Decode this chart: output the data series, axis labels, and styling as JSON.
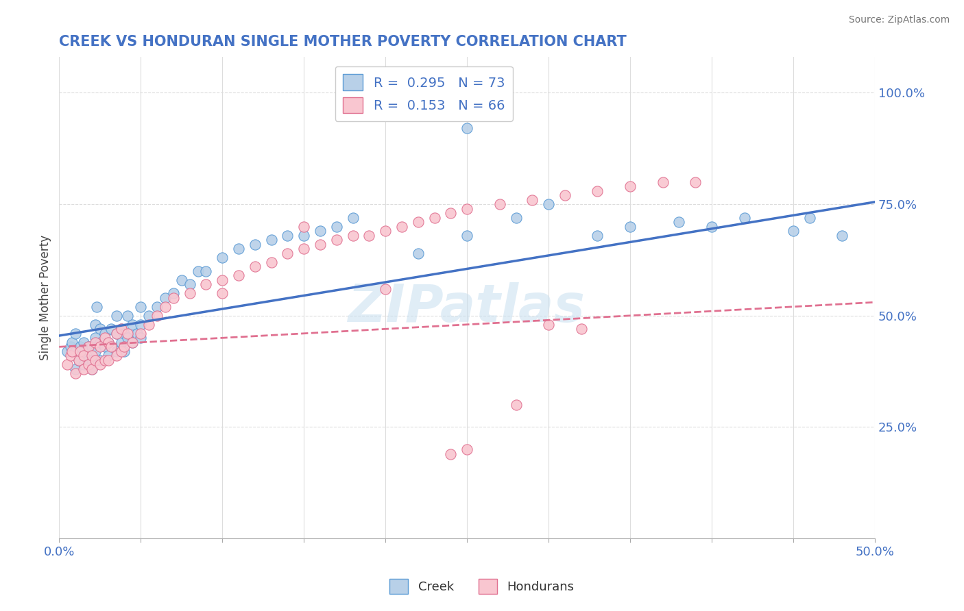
{
  "title": "CREEK VS HONDURAN SINGLE MOTHER POVERTY CORRELATION CHART",
  "source_text": "Source: ZipAtlas.com",
  "ylabel": "Single Mother Poverty",
  "xlim": [
    0.0,
    0.5
  ],
  "ylim": [
    0.0,
    1.08
  ],
  "xticks": [
    0.0,
    0.05,
    0.1,
    0.15,
    0.2,
    0.25,
    0.3,
    0.35,
    0.4,
    0.45,
    0.5
  ],
  "xticklabels": [
    "0.0%",
    "",
    "",
    "",
    "",
    "",
    "",
    "",
    "",
    "",
    "50.0%"
  ],
  "yticks_right": [
    0.25,
    0.5,
    0.75,
    1.0
  ],
  "yticklabels_right": [
    "25.0%",
    "50.0%",
    "75.0%",
    "100.0%"
  ],
  "creek_fill_color": "#b8d0e8",
  "creek_edge_color": "#5b9bd5",
  "honduran_fill_color": "#f9c6d0",
  "honduran_edge_color": "#e07090",
  "creek_line_color": "#4472c4",
  "honduran_line_color": "#e07090",
  "creek_R": 0.295,
  "creek_N": 73,
  "honduran_R": 0.153,
  "honduran_N": 66,
  "watermark": "ZIPatlas",
  "title_color": "#4472c4",
  "label_color": "#4472c4",
  "background_color": "#ffffff",
  "creek_scatter_x": [
    0.005,
    0.007,
    0.008,
    0.01,
    0.01,
    0.01,
    0.012,
    0.013,
    0.015,
    0.015,
    0.015,
    0.018,
    0.018,
    0.02,
    0.02,
    0.02,
    0.022,
    0.022,
    0.022,
    0.023,
    0.025,
    0.025,
    0.025,
    0.028,
    0.028,
    0.03,
    0.03,
    0.032,
    0.035,
    0.035,
    0.035,
    0.038,
    0.038,
    0.04,
    0.04,
    0.042,
    0.042,
    0.045,
    0.045,
    0.048,
    0.05,
    0.05,
    0.05,
    0.055,
    0.06,
    0.065,
    0.07,
    0.075,
    0.08,
    0.085,
    0.09,
    0.1,
    0.11,
    0.12,
    0.13,
    0.14,
    0.15,
    0.16,
    0.17,
    0.18,
    0.22,
    0.25,
    0.28,
    0.3,
    0.33,
    0.35,
    0.38,
    0.4,
    0.42,
    0.45,
    0.46,
    0.48,
    0.25
  ],
  "creek_scatter_y": [
    0.42,
    0.43,
    0.44,
    0.38,
    0.42,
    0.46,
    0.4,
    0.43,
    0.39,
    0.41,
    0.44,
    0.4,
    0.43,
    0.38,
    0.4,
    0.43,
    0.42,
    0.45,
    0.48,
    0.52,
    0.4,
    0.44,
    0.47,
    0.43,
    0.46,
    0.41,
    0.44,
    0.47,
    0.42,
    0.46,
    0.5,
    0.44,
    0.47,
    0.42,
    0.46,
    0.45,
    0.5,
    0.44,
    0.48,
    0.46,
    0.45,
    0.48,
    0.52,
    0.5,
    0.52,
    0.54,
    0.55,
    0.58,
    0.57,
    0.6,
    0.6,
    0.63,
    0.65,
    0.66,
    0.67,
    0.68,
    0.68,
    0.69,
    0.7,
    0.72,
    0.64,
    0.68,
    0.72,
    0.75,
    0.68,
    0.7,
    0.71,
    0.7,
    0.72,
    0.69,
    0.72,
    0.68,
    0.92
  ],
  "honduran_scatter_x": [
    0.005,
    0.007,
    0.008,
    0.01,
    0.012,
    0.013,
    0.015,
    0.015,
    0.018,
    0.018,
    0.02,
    0.02,
    0.022,
    0.022,
    0.025,
    0.025,
    0.028,
    0.028,
    0.03,
    0.03,
    0.032,
    0.035,
    0.035,
    0.038,
    0.038,
    0.04,
    0.042,
    0.045,
    0.05,
    0.055,
    0.06,
    0.065,
    0.07,
    0.08,
    0.09,
    0.1,
    0.11,
    0.12,
    0.13,
    0.14,
    0.15,
    0.16,
    0.17,
    0.18,
    0.19,
    0.2,
    0.21,
    0.22,
    0.23,
    0.24,
    0.25,
    0.27,
    0.29,
    0.31,
    0.33,
    0.35,
    0.37,
    0.39,
    0.25,
    0.3,
    0.2,
    0.15,
    0.1,
    0.32,
    0.28,
    0.24
  ],
  "honduran_scatter_y": [
    0.39,
    0.41,
    0.42,
    0.37,
    0.4,
    0.42,
    0.38,
    0.41,
    0.39,
    0.43,
    0.38,
    0.41,
    0.4,
    0.44,
    0.39,
    0.43,
    0.4,
    0.45,
    0.4,
    0.44,
    0.43,
    0.41,
    0.46,
    0.42,
    0.47,
    0.43,
    0.46,
    0.44,
    0.46,
    0.48,
    0.5,
    0.52,
    0.54,
    0.55,
    0.57,
    0.58,
    0.59,
    0.61,
    0.62,
    0.64,
    0.65,
    0.66,
    0.67,
    0.68,
    0.68,
    0.69,
    0.7,
    0.71,
    0.72,
    0.73,
    0.74,
    0.75,
    0.76,
    0.77,
    0.78,
    0.79,
    0.8,
    0.8,
    0.2,
    0.48,
    0.56,
    0.7,
    0.55,
    0.47,
    0.3,
    0.19
  ],
  "creek_trend_x": [
    0.0,
    0.5
  ],
  "creek_trend_y": [
    0.455,
    0.755
  ],
  "honduran_trend_x": [
    0.0,
    0.5
  ],
  "honduran_trend_y": [
    0.43,
    0.53
  ],
  "grid_color": "#dddddd",
  "grid_style": "--"
}
